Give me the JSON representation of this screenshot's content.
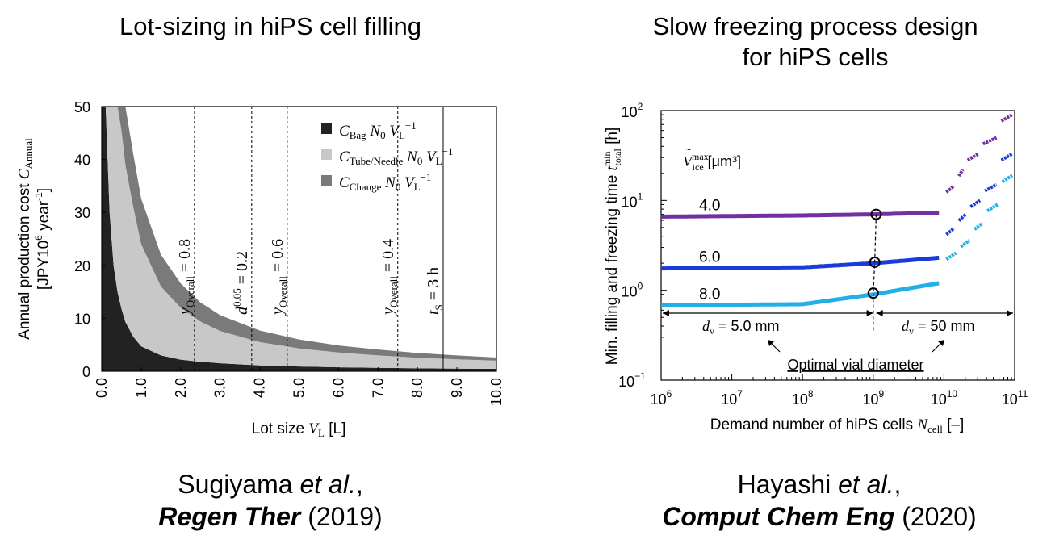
{
  "left_panel": {
    "title": "Lot-sizing in hiPS cell filling",
    "citation": {
      "authors": "Sugiyama",
      "etal": "et al.",
      "comma": ",",
      "journal": "Regen Ther",
      "year": "(2019)"
    }
  },
  "right_panel": {
    "title_line1": "Slow freezing process design",
    "title_line2": "for hiPS cells",
    "citation": {
      "authors": "Hayashi",
      "etal": "et al.",
      "comma": ",",
      "journal": "Comput Chem Eng",
      "year": "(2020)"
    }
  },
  "chart_data": [
    {
      "type": "area",
      "stacked": true,
      "xlabel": "Lot size V_L [L]",
      "ylabel_line1": "Annual production cost C_Annual",
      "ylabel_line2": "[JPY10^6 year^-1]",
      "xlim": [
        0,
        10
      ],
      "ylim": [
        0,
        50
      ],
      "xticks": [
        "0.0",
        "1.0",
        "2.0",
        "3.0",
        "4.0",
        "5.0",
        "6.0",
        "7.0",
        "8.0",
        "9.0",
        "10.0"
      ],
      "yticks": [
        "0",
        "10",
        "20",
        "30",
        "40",
        "50"
      ],
      "x": [
        0.05,
        0.1,
        0.2,
        0.3,
        0.4,
        0.5,
        0.6,
        0.8,
        1.0,
        1.5,
        2.0,
        2.5,
        3.0,
        4.0,
        5.0,
        6.0,
        7.0,
        8.0,
        9.0,
        10.0
      ],
      "series": [
        {
          "name": "C_Bag N_0 V_L^-1",
          "color": "#222222",
          "values": [
            50,
            50,
            30,
            20,
            15,
            11.8,
            9.3,
            6.5,
            4.7,
            3.0,
            2.2,
            1.8,
            1.5,
            1.1,
            0.9,
            0.75,
            0.65,
            0.55,
            0.5,
            0.45
          ]
        },
        {
          "name": "C_Tube/Needle N_0 V_L^-1",
          "color": "#c8c8c8",
          "values": [
            0,
            0,
            20,
            30,
            35,
            33.7,
            29.7,
            24.5,
            19.3,
            13.0,
            9.8,
            7.6,
            6.1,
            4.4,
            3.4,
            2.8,
            2.35,
            2.0,
            1.75,
            1.55
          ]
        },
        {
          "name": "C_Change N_0 V_L^-1",
          "color": "#7a7a7a",
          "values": [
            0,
            0,
            0,
            0,
            0,
            4.5,
            11,
            10,
            8.6,
            6.0,
            4.6,
            3.6,
            3.0,
            2.2,
            1.7,
            1.3,
            1.1,
            0.9,
            0.75,
            0.6
          ]
        }
      ],
      "legend": {
        "position": "top-right",
        "entries": [
          {
            "sym": "C",
            "sub": "Bag",
            "rest": "N",
            "rest_sub": "0",
            "v": "V",
            "v_sub": "L",
            "sup": "−1"
          },
          {
            "sym": "C",
            "sub": "Tube/Needle",
            "rest": "N",
            "rest_sub": "0",
            "v": "V",
            "v_sub": "L",
            "sup": "−1"
          },
          {
            "sym": "C",
            "sub": "Change",
            "rest": "N",
            "rest_sub": "0",
            "v": "V",
            "v_sub": "L",
            "sup": "−1"
          }
        ]
      },
      "vlines": [
        {
          "x": 2.35,
          "style": "dashed",
          "label": "y",
          "sub": "Overall",
          "eq": " = 0.8"
        },
        {
          "x": 3.8,
          "style": "dashed",
          "label": "d",
          "sup": "0.05",
          "eq": " = 0.2"
        },
        {
          "x": 4.7,
          "style": "dashed",
          "label": "y",
          "sub": "Overall",
          "eq": " = 0.6"
        },
        {
          "x": 7.5,
          "style": "dashed",
          "label": "y",
          "sub": "Overall",
          "eq": " = 0.4"
        },
        {
          "x": 8.65,
          "style": "solid",
          "label": "t",
          "sub": "S",
          "eq": " = 3 h"
        }
      ]
    },
    {
      "type": "scatter",
      "xscale": "log",
      "yscale": "log",
      "xlabel": "Demand number of hiPS cells N_cell [–]",
      "ylabel": "Min. filling and freezing time t_total^min [h]",
      "xlim": [
        1000000.0,
        100000000000.0
      ],
      "ylim": [
        0.1,
        100
      ],
      "xticks": [
        {
          "base": "10",
          "exp": "6"
        },
        {
          "base": "10",
          "exp": "7"
        },
        {
          "base": "10",
          "exp": "8"
        },
        {
          "base": "10",
          "exp": "9"
        },
        {
          "base": "10",
          "exp": "10"
        },
        {
          "base": "10",
          "exp": "11"
        }
      ],
      "yticks": [
        {
          "base": "10",
          "exp": "−1"
        },
        {
          "base": "10",
          "exp": "0"
        },
        {
          "base": "10",
          "exp": "1"
        },
        {
          "base": "10",
          "exp": "2"
        }
      ],
      "legend_title": "V_ice^max [μm³]",
      "series": [
        {
          "name": "4.0",
          "color": "#7030a0",
          "points": [
            [
              1000000.0,
              6.6
            ],
            [
              100000000.0,
              6.8
            ],
            [
              1000000000.0,
              7.0
            ],
            [
              8500000000.0,
              7.3
            ]
          ],
          "steps": [
            [
              10000000000.0,
              15000000000.0,
              14.5
            ],
            [
              15000000000.0,
              20000000000.0,
              22
            ],
            [
              20000000000.0,
              33000000000.0,
              33
            ],
            [
              33000000000.0,
              60000000000.0,
              50
            ],
            [
              60000000000.0,
              100000000000.0,
              90
            ]
          ]
        },
        {
          "name": "6.0",
          "color": "#1a3adb",
          "points": [
            [
              1000000.0,
              1.75
            ],
            [
              100000000.0,
              1.8
            ],
            [
              1000000000.0,
              2.0
            ],
            [
              8500000000.0,
              2.3
            ]
          ],
          "steps": [
            [
              10000000000.0,
              15000000000.0,
              4.9
            ],
            [
              15000000000.0,
              22000000000.0,
              7.0
            ],
            [
              22000000000.0,
              35000000000.0,
              10
            ],
            [
              35000000000.0,
              60000000000.0,
              15
            ],
            [
              60000000000.0,
              100000000000.0,
              33
            ]
          ]
        },
        {
          "name": "8.0",
          "color": "#22aee8",
          "points": [
            [
              1000000.0,
              0.68
            ],
            [
              100000000.0,
              0.7
            ],
            [
              1000000000.0,
              0.9
            ],
            [
              8500000000.0,
              1.2
            ]
          ],
          "steps": [
            [
              10000000000.0,
              16000000000.0,
              2.6
            ],
            [
              16000000000.0,
              25000000000.0,
              3.6
            ],
            [
              25000000000.0,
              38000000000.0,
              5.6
            ],
            [
              38000000000.0,
              62000000000.0,
              9
            ],
            [
              62000000000.0,
              100000000000.0,
              19
            ]
          ]
        }
      ],
      "optimal_points": [
        [
          1100000000.0,
          7.0
        ],
        [
          1050000000.0,
          2.05
        ],
        [
          1000000000.0,
          0.93
        ]
      ],
      "annotations": {
        "region_left": {
          "d": "d",
          "sub": "v",
          "text": " = 5.0 mm"
        },
        "region_right": {
          "d": "d",
          "sub": "v",
          "text": " = 50 mm"
        },
        "optimal_label": "Optimal vial diameter"
      }
    }
  ]
}
